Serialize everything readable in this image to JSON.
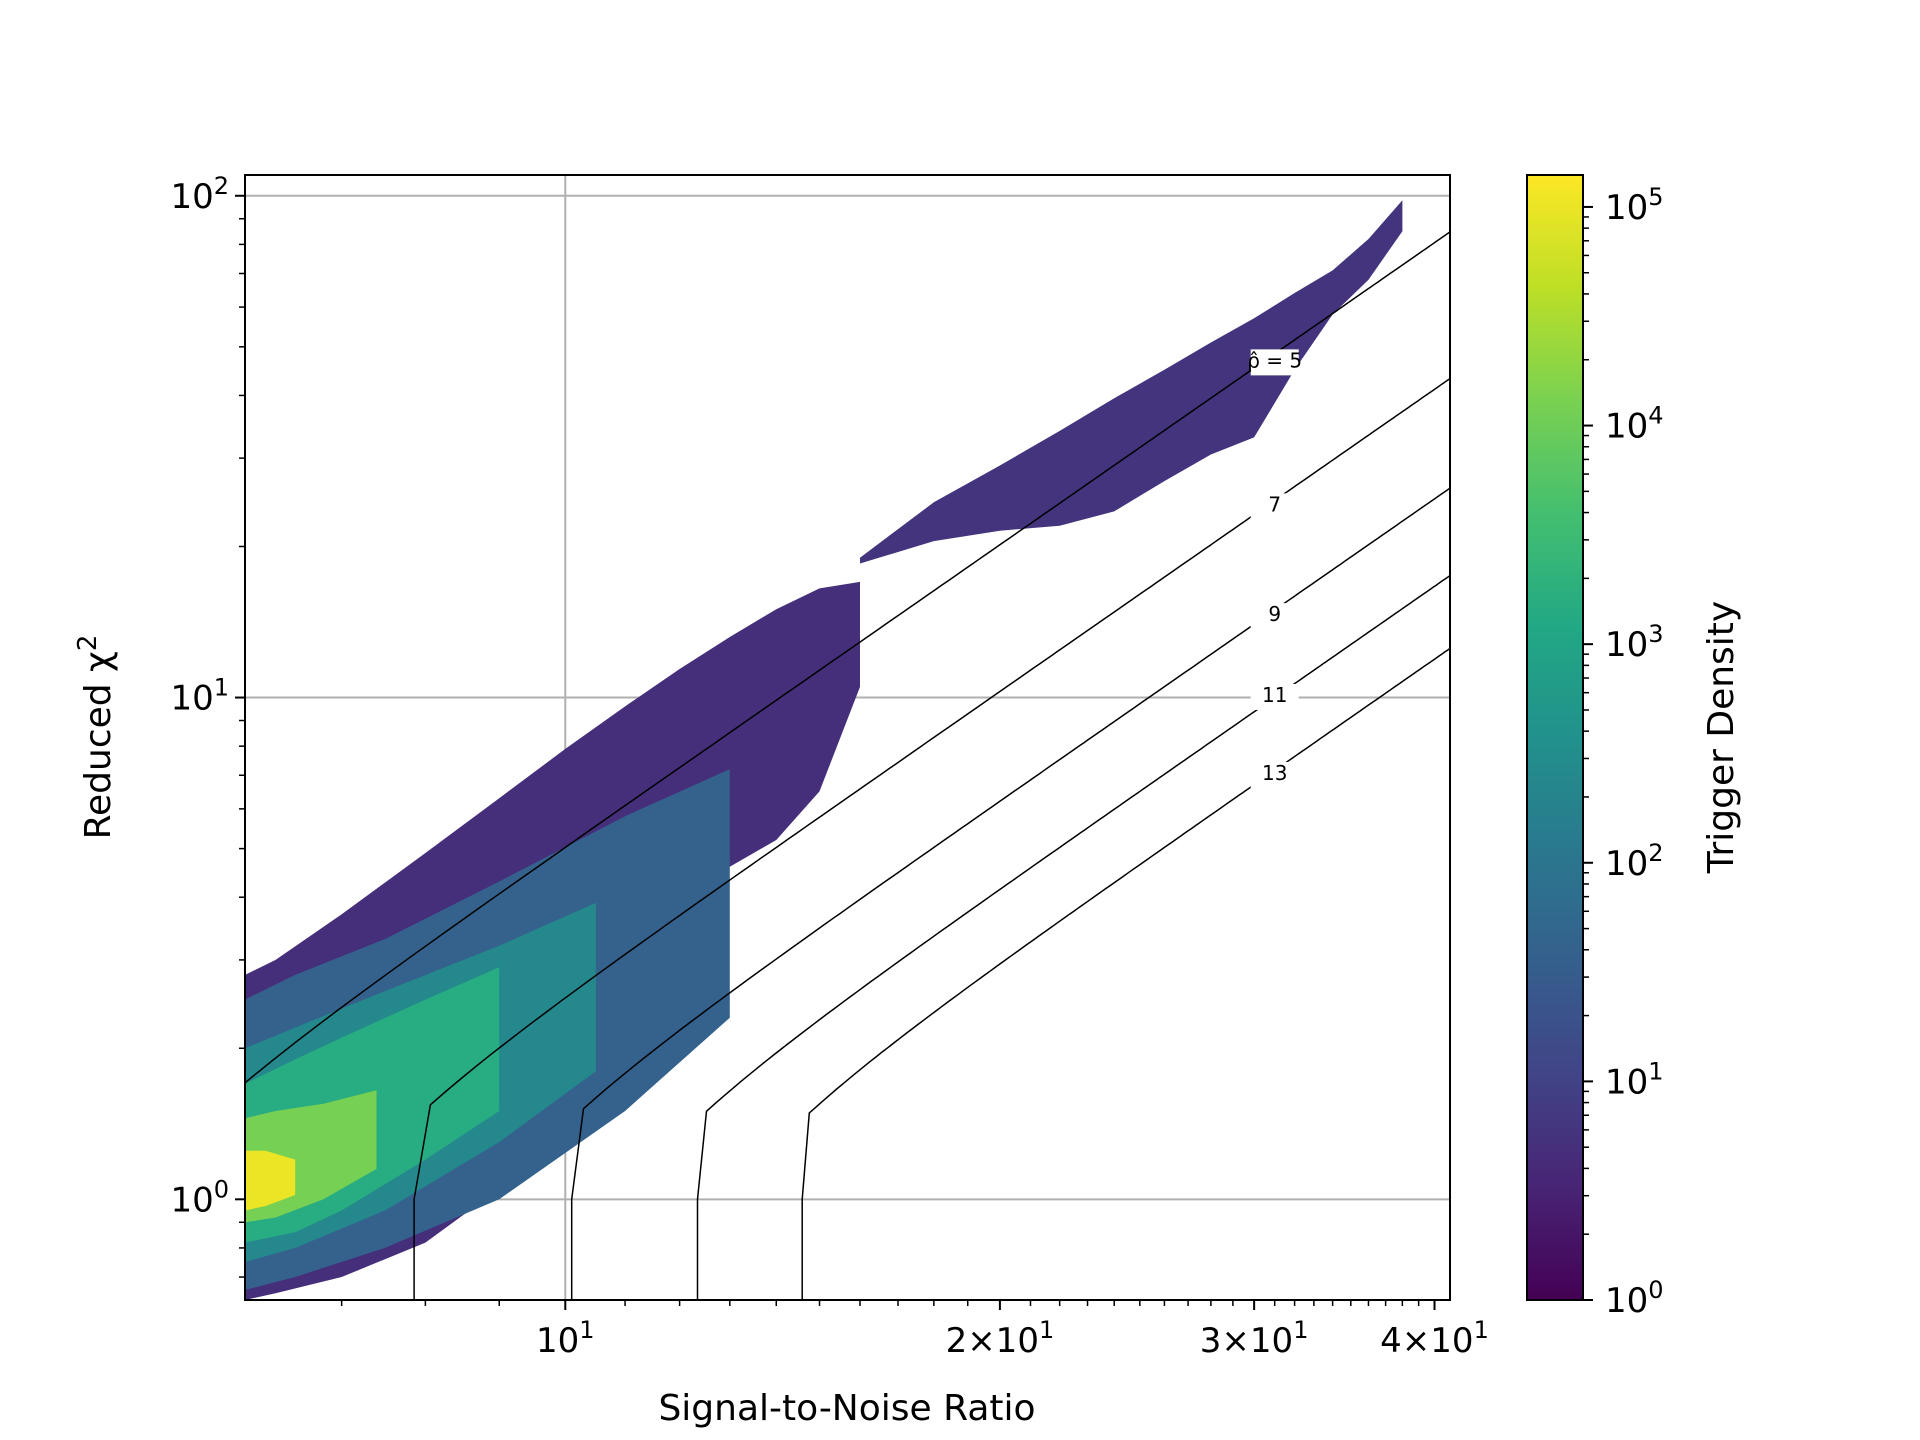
{
  "chart_data": {
    "type": "heatmap",
    "subtype": "hexbin-density with contour lines",
    "title": "",
    "xlabel": "Signal-to-Noise Ratio",
    "ylabel": "Reduced χ²",
    "colorbar_label": "Trigger Density",
    "xscale": "log",
    "yscale": "log",
    "xlim": [
      6,
      41
    ],
    "ylim": [
      0.63,
      110
    ],
    "grid": true,
    "colormap": "viridis",
    "colorbar_range": [
      1,
      140000
    ],
    "x_ticks": [
      {
        "value": 10,
        "base": "10",
        "exp": "1",
        "mult": ""
      },
      {
        "value": 20,
        "base": "10",
        "exp": "1",
        "mult": "2×"
      },
      {
        "value": 30,
        "base": "10",
        "exp": "1",
        "mult": "3×"
      },
      {
        "value": 40,
        "base": "10",
        "exp": "1",
        "mult": "4×"
      }
    ],
    "y_ticks": [
      {
        "value": 1,
        "base": "10",
        "exp": "0"
      },
      {
        "value": 10,
        "base": "10",
        "exp": "1"
      },
      {
        "value": 100,
        "base": "10",
        "exp": "2"
      }
    ],
    "colorbar_ticks": [
      {
        "value": 1,
        "base": "10",
        "exp": "0"
      },
      {
        "value": 10,
        "base": "10",
        "exp": "1"
      },
      {
        "value": 100,
        "base": "10",
        "exp": "2"
      },
      {
        "value": 1000,
        "base": "10",
        "exp": "3"
      },
      {
        "value": 10000,
        "base": "10",
        "exp": "4"
      },
      {
        "value": 100000,
        "base": "10",
        "exp": "5"
      }
    ],
    "contours": [
      {
        "rho": 5,
        "label": "ρ̂ = 5",
        "label_at": [
          31,
          45.5
        ]
      },
      {
        "rho": 7,
        "label": "7",
        "label_at": [
          31,
          23.5
        ]
      },
      {
        "rho": 9,
        "label": "9",
        "label_at": [
          31,
          14.2
        ]
      },
      {
        "rho": 11,
        "label": "11",
        "label_at": [
          31,
          9.8
        ]
      },
      {
        "rho": 13,
        "label": "13",
        "label_at": [
          31,
          6.85
        ]
      }
    ],
    "density_bands": [
      {
        "x": [
          6.0,
          6.3,
          7.0,
          8.0,
          9.0,
          10.0,
          11.0,
          12.0,
          13.0,
          14.0,
          15.0,
          16.0
        ],
        "upper": [
          2.8,
          3.0,
          3.7,
          4.9,
          6.3,
          7.9,
          9.6,
          11.4,
          13.2,
          15.0,
          16.5,
          17.0
        ],
        "lower": [
          0.63,
          0.65,
          0.7,
          0.82,
          1.05,
          1.7,
          2.6,
          3.6,
          4.6,
          5.2,
          6.5,
          10.5
        ],
        "density": 5
      },
      {
        "x": [
          6.0,
          6.5,
          7.5,
          9.0,
          11.0,
          13.0
        ],
        "upper": [
          2.5,
          2.8,
          3.3,
          4.3,
          5.8,
          7.2
        ],
        "lower": [
          0.66,
          0.7,
          0.8,
          1.0,
          1.5,
          2.3
        ],
        "density": 40
      },
      {
        "x": [
          6.0,
          6.5,
          7.5,
          9.0,
          10.5
        ],
        "upper": [
          2.0,
          2.2,
          2.6,
          3.2,
          3.9
        ],
        "lower": [
          0.75,
          0.8,
          0.95,
          1.3,
          1.8
        ],
        "density": 250
      },
      {
        "x": [
          6.0,
          6.5,
          7.0,
          8.0,
          9.0
        ],
        "upper": [
          1.7,
          1.9,
          2.1,
          2.5,
          2.9
        ],
        "lower": [
          0.82,
          0.86,
          0.95,
          1.2,
          1.5
        ],
        "density": 1500
      },
      {
        "x": [
          6.0,
          6.3,
          6.8,
          7.4
        ],
        "upper": [
          1.45,
          1.5,
          1.55,
          1.65
        ],
        "lower": [
          0.9,
          0.92,
          1.0,
          1.15
        ],
        "density": 12000
      },
      {
        "x": [
          6.0,
          6.2,
          6.5
        ],
        "upper": [
          1.25,
          1.25,
          1.2
        ],
        "lower": [
          0.95,
          0.97,
          1.02
        ],
        "density": 100000
      },
      {
        "x": [
          16.0,
          18.0,
          20.0,
          22.0,
          24.0,
          26.0,
          28.0,
          30.0,
          32.0,
          34.0,
          36.0,
          38.0
        ],
        "upper": [
          19.0,
          24.5,
          29.0,
          34.0,
          39.5,
          45.0,
          51.0,
          57.0,
          64.0,
          71.0,
          82.0,
          98.0
        ],
        "lower": [
          18.5,
          20.5,
          21.5,
          22.0,
          23.5,
          27.0,
          30.5,
          33.0,
          45.0,
          58.0,
          68.0,
          85.0
        ],
        "density": 6
      }
    ]
  }
}
